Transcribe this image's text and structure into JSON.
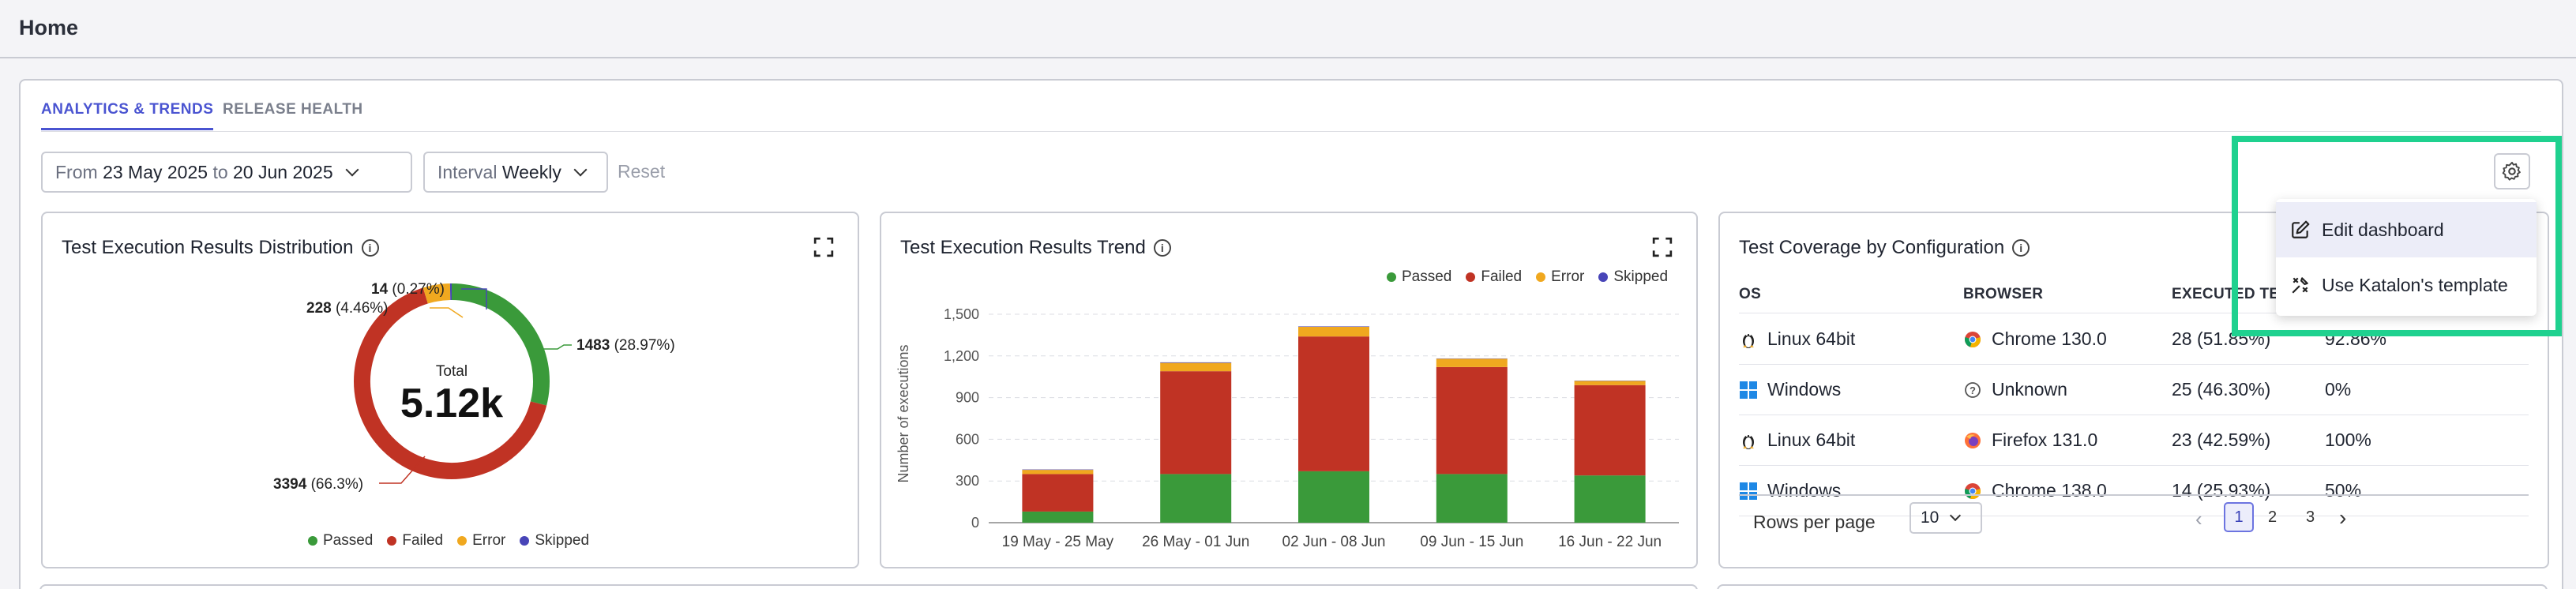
{
  "header": {
    "title": "Home"
  },
  "tabs": [
    {
      "label": "ANALYTICS & TRENDS",
      "active": true
    },
    {
      "label": "RELEASE HEALTH",
      "active": false
    }
  ],
  "filters": {
    "date_from_label": "From",
    "date_from": "23 May 2025",
    "date_to_label": "to",
    "date_to": "20 Jun 2025",
    "interval_label": "Interval",
    "interval_value": "Weekly",
    "reset_label": "Reset"
  },
  "colors": {
    "passed": "#3a9a3a",
    "failed": "#c03324",
    "error": "#f0a81f",
    "skipped": "#4845b8",
    "accent": "#4a54d1",
    "highlight": "#1fd18f"
  },
  "distribution_card": {
    "title": "Test Execution Results Distribution",
    "center_label": "Total",
    "center_value": "5.12k",
    "callouts": [
      {
        "count": "1483",
        "pct": "(28.97%)"
      },
      {
        "count": "3394",
        "pct": "(66.3%)"
      },
      {
        "count": "228",
        "pct": "(4.46%)"
      },
      {
        "count": "14",
        "pct": "(0.27%)"
      }
    ],
    "legend": [
      "Passed",
      "Failed",
      "Error",
      "Skipped"
    ]
  },
  "trend_card": {
    "title": "Test Execution Results Trend",
    "legend": [
      "Passed",
      "Failed",
      "Error",
      "Skipped"
    ]
  },
  "chart_data": [
    {
      "type": "pie",
      "categories": [
        "Passed",
        "Failed",
        "Error",
        "Skipped"
      ],
      "values": [
        1483,
        3394,
        228,
        14
      ],
      "title": "Test Execution Results Distribution"
    },
    {
      "type": "bar",
      "title": "Test Execution Results Trend",
      "categories": [
        "19 May - 25 May",
        "26 May - 01 Jun",
        "02 Jun - 08 Jun",
        "09 Jun - 15 Jun",
        "16 Jun - 22 Jun"
      ],
      "series": [
        {
          "name": "Passed",
          "values": [
            80,
            350,
            370,
            350,
            340
          ]
        },
        {
          "name": "Failed",
          "values": [
            270,
            740,
            970,
            770,
            650
          ]
        },
        {
          "name": "Error",
          "values": [
            30,
            60,
            70,
            60,
            30
          ]
        },
        {
          "name": "Skipped",
          "values": [
            3,
            4,
            3,
            2,
            2
          ]
        }
      ],
      "ylabel": "Number of executions",
      "yticks": [
        "0",
        "300",
        "600",
        "900",
        "1,200",
        "1,500"
      ],
      "ylim": [
        0,
        1500
      ],
      "grid": true,
      "legend_position": "top-right"
    }
  ],
  "coverage_card": {
    "title": "Test Coverage by Configuration",
    "columns": [
      "OS",
      "BROWSER",
      "EXECUTED TE"
    ],
    "rows": [
      {
        "os": "Linux 64bit",
        "os_icon": "linux-icon",
        "browser": "Chrome 130.0",
        "browser_icon": "chrome-icon",
        "executed": "28",
        "executed_pct": "(51.85%)",
        "rate": "92.86%"
      },
      {
        "os": "Windows",
        "os_icon": "windows-icon",
        "browser": "Unknown",
        "browser_icon": "unknown-browser-icon",
        "executed": "25",
        "executed_pct": "(46.30%)",
        "rate": "0%"
      },
      {
        "os": "Linux 64bit",
        "os_icon": "linux-icon",
        "browser": "Firefox 131.0",
        "browser_icon": "firefox-icon",
        "executed": "23",
        "executed_pct": "(42.59%)",
        "rate": "100%"
      },
      {
        "os": "Windows",
        "os_icon": "windows-icon",
        "browser": "Chrome 138.0",
        "browser_icon": "chrome-icon",
        "executed": "14",
        "executed_pct": "(25.93%)",
        "rate": "50%"
      }
    ],
    "rows_per_page_label": "Rows per page",
    "rows_per_page_value": "10",
    "pages": [
      "1",
      "2",
      "3"
    ],
    "current_page": "1"
  },
  "settings_menu": {
    "items": [
      {
        "label": "Edit dashboard",
        "icon": "edit-icon"
      },
      {
        "label": "Use Katalon's template",
        "icon": "tools-icon"
      }
    ]
  }
}
